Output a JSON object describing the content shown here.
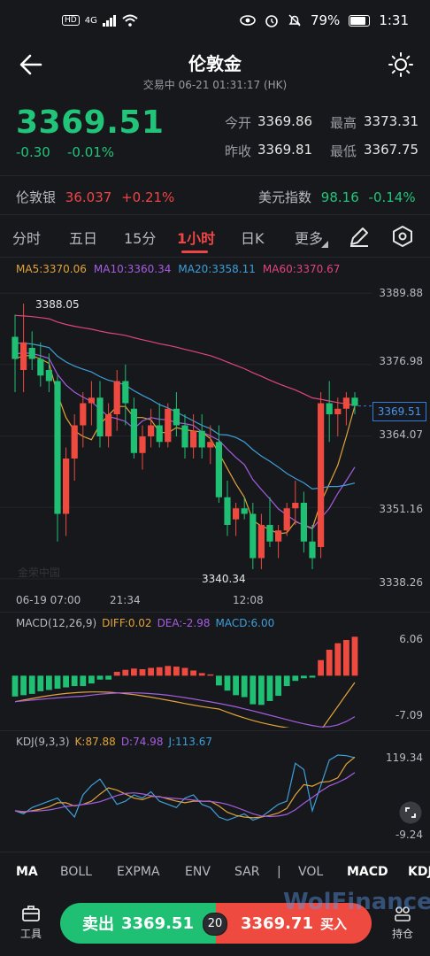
{
  "status_bar": {
    "network": "4G",
    "battery": "79%",
    "time": "1:31"
  },
  "header": {
    "title": "伦敦金",
    "subtitle": "交易中  06-21 01:31:17 (HK)"
  },
  "quote": {
    "price": "3369.51",
    "change": "-0.30",
    "change_pct": "-0.01%",
    "open_label": "今开",
    "open": "3369.86",
    "high_label": "最高",
    "high": "3373.31",
    "prev_label": "昨收",
    "prev": "3369.81",
    "low_label": "最低",
    "low": "3367.75"
  },
  "related": [
    {
      "name": "伦敦银",
      "value": "36.037",
      "pct": "+0.21%",
      "color": "#f04545"
    },
    {
      "name": "美元指数",
      "value": "98.16",
      "pct": "-0.14%",
      "color": "#22c47a"
    }
  ],
  "timeframes": [
    "分时",
    "五日",
    "15分",
    "1小时",
    "日K",
    "更多"
  ],
  "active_timeframe": "1小时",
  "ma": [
    {
      "label": "MA5:3370.06",
      "color": "#e2a33a"
    },
    {
      "label": "MA10:3360.34",
      "color": "#a65de0"
    },
    {
      "label": "MA20:3358.11",
      "color": "#3e9fd8"
    },
    {
      "label": "MA60:3370.67",
      "color": "#e0457f"
    }
  ],
  "price_axis": [
    "3389.88",
    "3376.98",
    "3364.07",
    "3351.16",
    "3338.26"
  ],
  "current_price_tag": "3369.51",
  "annotations": {
    "high": "3388.05",
    "low": "3340.34"
  },
  "time_axis": [
    "06-19 07:00",
    "21:34",
    "12:08"
  ],
  "watermark": "金荣中国",
  "macd": {
    "title": "MACD(12,26,9)",
    "diff": "DIFF:0.02",
    "dea": "DEA:-2.98",
    "macd": "MACD:6.00",
    "axis": [
      "6.06",
      "-7.09"
    ]
  },
  "kdj": {
    "title": "KDJ(9,3,3)",
    "k": "K:87.88",
    "d": "D:74.98",
    "j": "J:113.67",
    "axis": [
      "119.34",
      "-9.24"
    ]
  },
  "indicator_tabs": [
    "MA",
    "BOLL",
    "EXPMA",
    "ENV",
    "SAR",
    "|",
    "VOL",
    "MACD",
    "KDJ"
  ],
  "actions": {
    "tools_label": "工具",
    "sell_label": "卖出",
    "sell_price": "3369.51",
    "spread": "20",
    "buy_price": "3369.71",
    "buy_label": "买入",
    "positions_label": "持仓",
    "brand": "WolFinance"
  },
  "candles": [
    [
      3382,
      3386,
      3372,
      3378
    ],
    [
      3376,
      3388,
      3372,
      3381
    ],
    [
      3380,
      3383,
      3376,
      3378
    ],
    [
      3378,
      3381,
      3373,
      3375
    ],
    [
      3376,
      3379,
      3372,
      3374
    ],
    [
      3374,
      3375,
      3345,
      3350
    ],
    [
      3350,
      3362,
      3346,
      3360
    ],
    [
      3360,
      3368,
      3356,
      3366
    ],
    [
      3366,
      3372,
      3362,
      3370
    ],
    [
      3370,
      3374,
      3366,
      3371
    ],
    [
      3371,
      3374,
      3362,
      3364
    ],
    [
      3364,
      3370,
      3362,
      3368
    ],
    [
      3368,
      3376,
      3365,
      3374
    ],
    [
      3374,
      3377,
      3366,
      3370
    ],
    [
      3369,
      3371,
      3360,
      3361
    ],
    [
      3361,
      3366,
      3358,
      3364
    ],
    [
      3364,
      3369,
      3362,
      3366
    ],
    [
      3366,
      3370,
      3362,
      3363
    ],
    [
      3363,
      3370,
      3362,
      3369
    ],
    [
      3369,
      3372,
      3364,
      3366
    ],
    [
      3366,
      3368,
      3360,
      3362
    ],
    [
      3362,
      3368,
      3360,
      3365
    ],
    [
      3365,
      3368,
      3360,
      3362
    ],
    [
      3362,
      3366,
      3359,
      3363
    ],
    [
      3363,
      3366,
      3352,
      3353
    ],
    [
      3353,
      3356,
      3346,
      3348
    ],
    [
      3349,
      3352,
      3346,
      3351
    ],
    [
      3351,
      3353,
      3349,
      3350
    ],
    [
      3350,
      3352,
      3340,
      3342
    ],
    [
      3342,
      3350,
      3340,
      3348
    ],
    [
      3348,
      3353,
      3344,
      3345
    ],
    [
      3345,
      3348,
      3342,
      3347
    ],
    [
      3347,
      3352,
      3346,
      3351
    ],
    [
      3351,
      3356,
      3348,
      3352
    ],
    [
      3352,
      3354,
      3343,
      3345
    ],
    [
      3345,
      3348,
      3340,
      3342
    ],
    [
      3344,
      3372,
      3342,
      3370
    ],
    [
      3370,
      3374,
      3363,
      3368
    ],
    [
      3368,
      3371,
      3364,
      3369
    ],
    [
      3369,
      3372,
      3366,
      3371
    ],
    [
      3371,
      3372,
      3368,
      3369.51
    ]
  ],
  "macd_hist": [
    -3.2,
    -3.0,
    -2.8,
    -2.4,
    -2.2,
    -2.0,
    -1.8,
    -1.6,
    -1.6,
    -1.2,
    -0.6,
    -0.6,
    0.6,
    0.9,
    1.1,
    1.0,
    1.2,
    1.3,
    1.5,
    1.4,
    1.2,
    0.8,
    0.4,
    0.2,
    -1.5,
    -2.3,
    -3.0,
    -3.3,
    -4.4,
    -4.5,
    -3.9,
    -3.1,
    -1.6,
    -0.8,
    -0.4,
    -0.3,
    2.4,
    4.0,
    5.0,
    5.5,
    6.0
  ]
}
